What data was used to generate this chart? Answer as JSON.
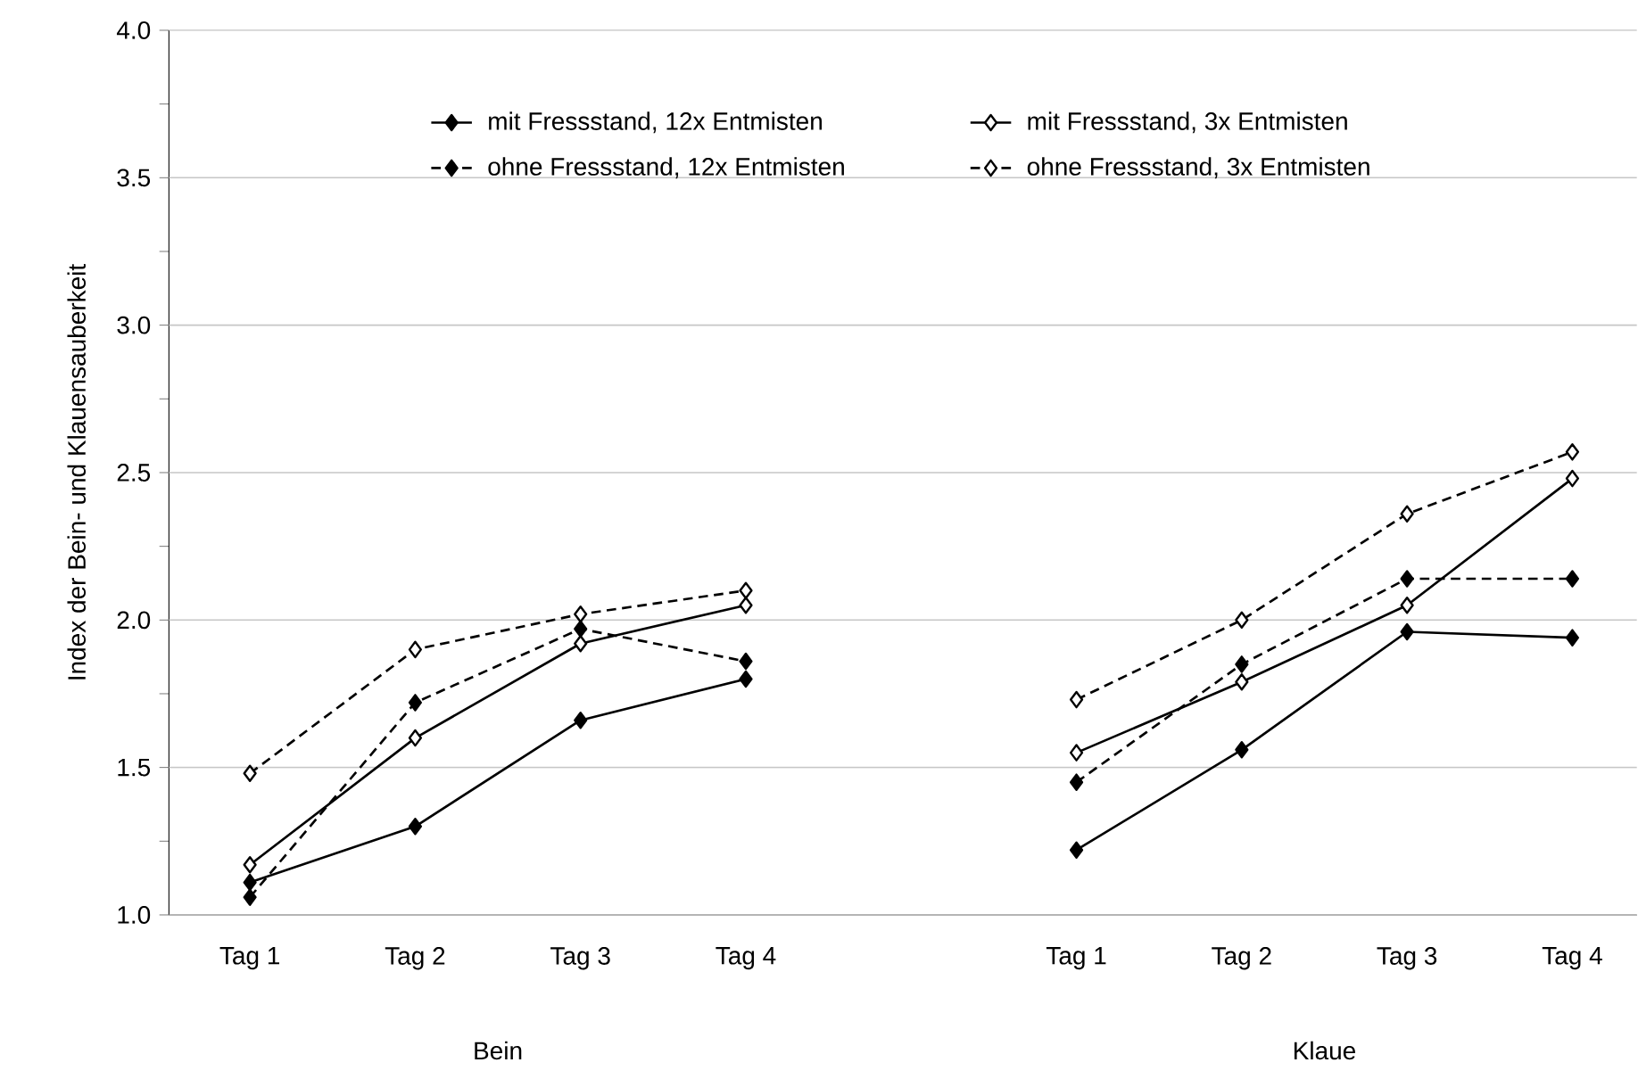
{
  "chart_data": {
    "type": "line",
    "ylabel": "Index der Bein- und Klauensauberkeit",
    "categories": [
      "Tag 1",
      "Tag 2",
      "Tag 3",
      "Tag 4",
      null,
      "Tag 1",
      "Tag 2",
      "Tag 3",
      "Tag 4"
    ],
    "series": [
      {
        "name": "mit Fressstand, 12x Entmisten",
        "color": "#000000",
        "line_style": "solid",
        "marker": "diamond",
        "values": [
          1.11,
          1.3,
          1.66,
          1.8,
          null,
          1.22,
          1.56,
          1.96,
          1.94
        ]
      },
      {
        "name": "mit Fressstand, 3x Entmisten",
        "color": "#000000",
        "line_style": "solid",
        "marker": "diamond-open",
        "values": [
          1.17,
          1.6,
          1.92,
          2.05,
          null,
          1.55,
          1.79,
          2.05,
          2.48
        ]
      },
      {
        "name": "ohne Fressstand, 12x Entmisten",
        "color": "#000000",
        "line_style": "dashed",
        "marker": "diamond",
        "values": [
          1.06,
          1.72,
          1.97,
          1.86,
          null,
          1.45,
          1.85,
          2.14,
          2.14
        ]
      },
      {
        "name": "ohne Fressstand, 3x Entmisten",
        "color": "#000000",
        "line_style": "dashed",
        "marker": "diamond-open",
        "values": [
          1.48,
          1.9,
          2.02,
          2.1,
          null,
          1.73,
          2.0,
          2.36,
          2.57
        ]
      }
    ],
    "ylim": [
      1,
      4
    ],
    "yticks": [
      {
        "value": 1,
        "label": "1.0"
      },
      {
        "value": 1.25,
        "label": null
      },
      1.5,
      {
        "value": 1.75,
        "label": null
      },
      {
        "value": 2,
        "label": "2.0"
      },
      {
        "value": 2.25,
        "label": null
      },
      2.5,
      {
        "value": 2.75,
        "label": null
      },
      {
        "value": 3,
        "label": "3.0"
      },
      {
        "value": 3.25,
        "label": null
      },
      3.5,
      {
        "value": 3.75,
        "label": null
      },
      {
        "value": 4,
        "label": "4.0"
      }
    ],
    "grid": "y",
    "legend": "top",
    "annotations": [
      "Bein",
      "Klaue"
    ]
  }
}
